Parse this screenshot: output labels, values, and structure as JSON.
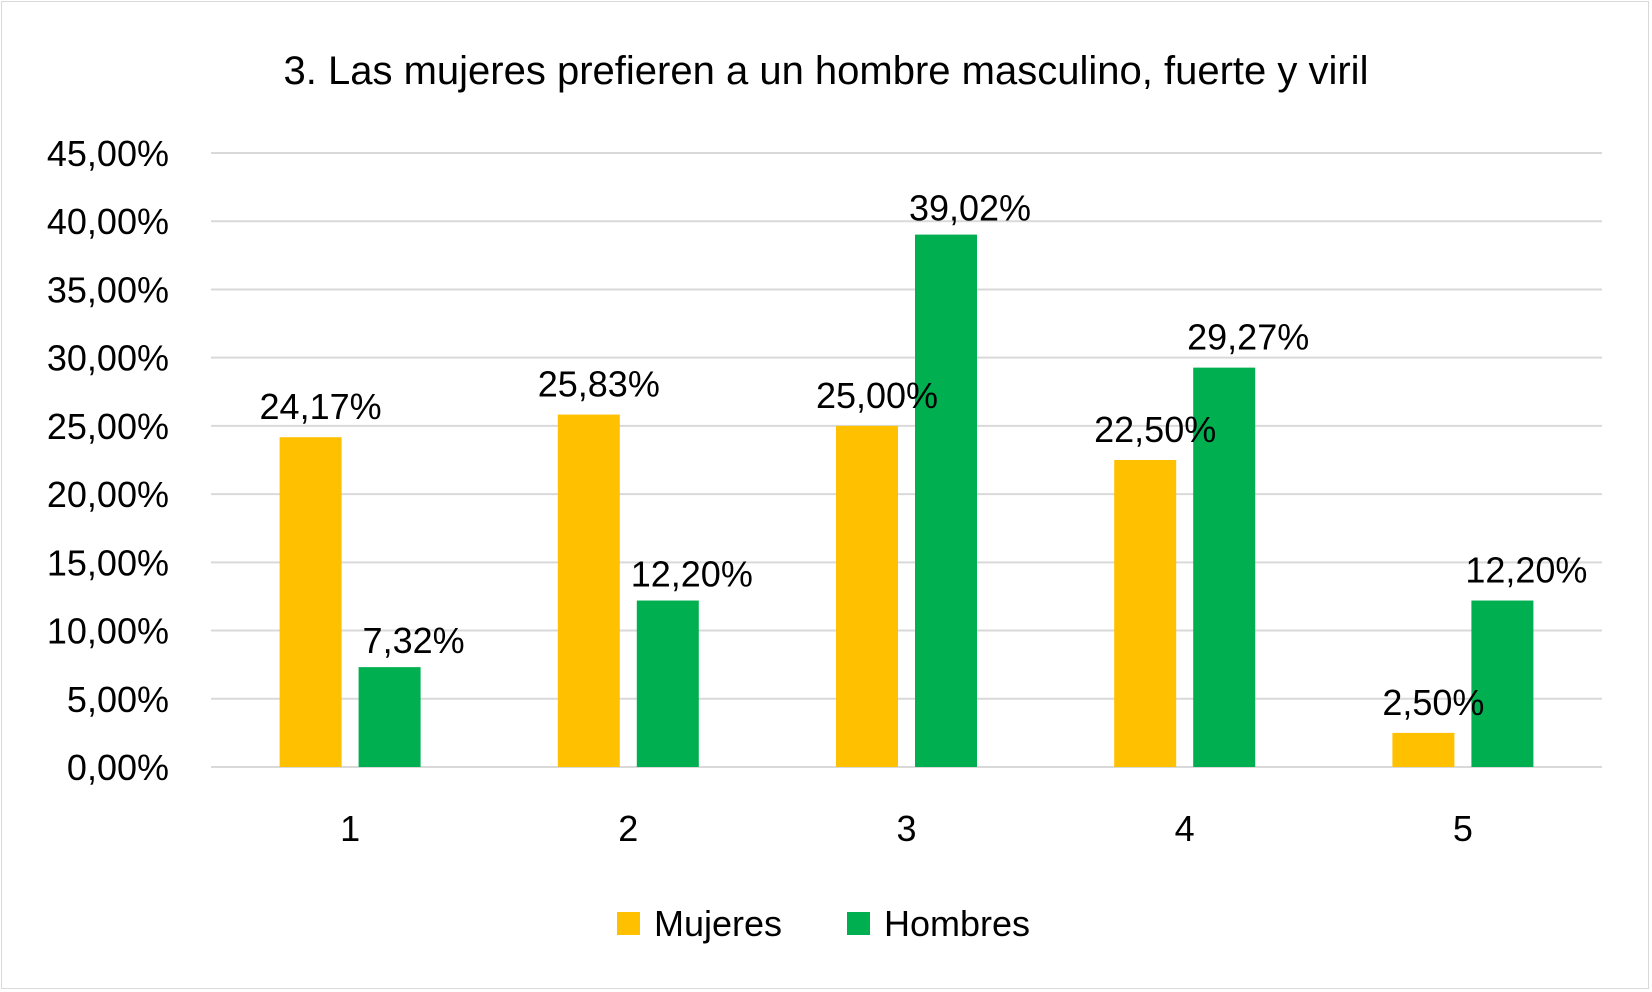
{
  "chart_data": {
    "type": "bar",
    "title": "3. Las mujeres prefieren a un hombre masculino, fuerte y viril",
    "categories": [
      "1",
      "2",
      "3",
      "4",
      "5"
    ],
    "series": [
      {
        "name": "Mujeres",
        "color": "#ffc000",
        "values": [
          24.17,
          25.83,
          25.0,
          22.5,
          2.5
        ],
        "labels": [
          "24,17%",
          "25,83%",
          "25,00%",
          "22,50%",
          "2,50%"
        ]
      },
      {
        "name": "Hombres",
        "color": "#00b050",
        "values": [
          7.32,
          12.2,
          39.02,
          29.27,
          12.2
        ],
        "labels": [
          "7,32%",
          "12,20%",
          "39,02%",
          "29,27%",
          "12,20%"
        ]
      }
    ],
    "ylim": [
      0,
      45
    ],
    "yticks": [
      0,
      5,
      10,
      15,
      20,
      25,
      30,
      35,
      40,
      45
    ],
    "ytick_labels": [
      "0,00%",
      "5,00%",
      "10,00%",
      "15,00%",
      "20,00%",
      "25,00%",
      "30,00%",
      "35,00%",
      "40,00%",
      "45,00%"
    ],
    "xlabel": "",
    "ylabel": "",
    "grid": true,
    "legend_position": "bottom"
  }
}
